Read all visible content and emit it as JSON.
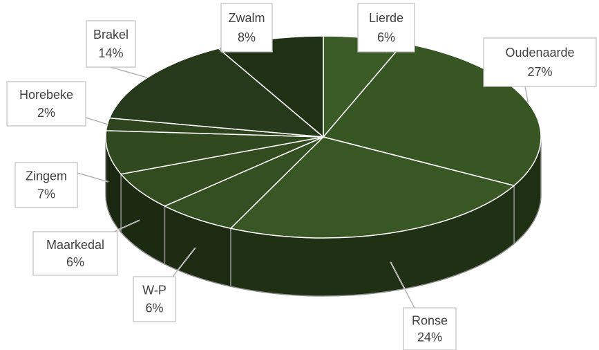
{
  "chart_data": {
    "type": "pie3d",
    "categories": [
      "Lierde",
      "Oudenaarde",
      "Ronse",
      "W-P",
      "Maarkedal",
      "Zingem",
      "Horebeke",
      "Brakel",
      "Zwalm"
    ],
    "values": [
      6,
      27,
      24,
      6,
      6,
      7,
      2,
      14,
      8
    ],
    "value_labels": [
      "6%",
      "27%",
      "24%",
      "6%",
      "6%",
      "7%",
      "2%",
      "14%",
      "8%"
    ],
    "colors": [
      "#3b5b27",
      "#375623",
      "#385724",
      "#344f22",
      "#324c20",
      "#30491f",
      "#2d441d",
      "#26391a",
      "#213116"
    ]
  }
}
